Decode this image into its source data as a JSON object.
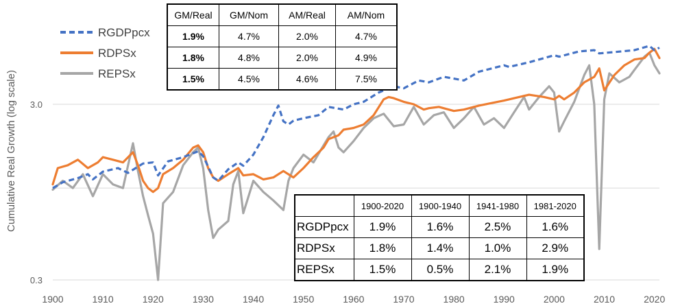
{
  "chart_data": {
    "type": "line",
    "ylabel": "Cumulative Real Growth (log scale)",
    "y_scale": "log",
    "ylim": [
      0.3,
      6.5
    ],
    "xlim": [
      1900,
      2021
    ],
    "x_ticks": [
      "1900",
      "1910",
      "1920",
      "1930",
      "1940",
      "1950",
      "1960",
      "1970",
      "1980",
      "1990",
      "2000",
      "2010",
      "2020"
    ],
    "y_ticks": [
      "3.0",
      "0.3"
    ],
    "gridlines": true,
    "legend_position": "top-left",
    "series": [
      {
        "name": "RGDPpcx",
        "color": "#4472C4",
        "dashed": true,
        "points": [
          [
            1900,
            1.0
          ],
          [
            1902,
            1.08
          ],
          [
            1905,
            1.14
          ],
          [
            1907,
            1.2
          ],
          [
            1908,
            1.12
          ],
          [
            1910,
            1.24
          ],
          [
            1913,
            1.3
          ],
          [
            1915,
            1.22
          ],
          [
            1918,
            1.38
          ],
          [
            1920,
            1.4
          ],
          [
            1921,
            1.18
          ],
          [
            1923,
            1.42
          ],
          [
            1926,
            1.5
          ],
          [
            1929,
            1.62
          ],
          [
            1930,
            1.52
          ],
          [
            1932,
            1.15
          ],
          [
            1933,
            1.1
          ],
          [
            1935,
            1.28
          ],
          [
            1937,
            1.4
          ],
          [
            1938,
            1.34
          ],
          [
            1940,
            1.55
          ],
          [
            1942,
            1.95
          ],
          [
            1944,
            2.6
          ],
          [
            1945,
            2.95
          ],
          [
            1946,
            2.4
          ],
          [
            1947,
            2.3
          ],
          [
            1948,
            2.42
          ],
          [
            1950,
            2.5
          ],
          [
            1953,
            2.6
          ],
          [
            1955,
            2.9
          ],
          [
            1958,
            2.8
          ],
          [
            1960,
            3.0
          ],
          [
            1962,
            3.1
          ],
          [
            1965,
            3.5
          ],
          [
            1968,
            3.8
          ],
          [
            1970,
            3.7
          ],
          [
            1973,
            4.1
          ],
          [
            1975,
            4.0
          ],
          [
            1978,
            4.3
          ],
          [
            1980,
            4.2
          ],
          [
            1982,
            4.1
          ],
          [
            1985,
            4.6
          ],
          [
            1990,
            5.0
          ],
          [
            1991,
            4.9
          ],
          [
            1995,
            5.2
          ],
          [
            2000,
            5.7
          ],
          [
            2001,
            5.6
          ],
          [
            2005,
            6.0
          ],
          [
            2008,
            6.1
          ],
          [
            2009,
            5.85
          ],
          [
            2012,
            5.95
          ],
          [
            2016,
            6.1
          ],
          [
            2019,
            6.45
          ],
          [
            2020,
            6.1
          ],
          [
            2021,
            6.3
          ]
        ]
      },
      {
        "name": "RDPSx",
        "color": "#ED7D31",
        "dashed": false,
        "points": [
          [
            1900,
            1.05
          ],
          [
            1901,
            1.3
          ],
          [
            1903,
            1.35
          ],
          [
            1905,
            1.45
          ],
          [
            1907,
            1.3
          ],
          [
            1909,
            1.4
          ],
          [
            1910,
            1.5
          ],
          [
            1912,
            1.45
          ],
          [
            1914,
            1.4
          ],
          [
            1916,
            1.6
          ],
          [
            1917,
            1.35
          ],
          [
            1918,
            1.1
          ],
          [
            1919,
            1.0
          ],
          [
            1920,
            0.95
          ],
          [
            1921,
            1.0
          ],
          [
            1922,
            1.2
          ],
          [
            1924,
            1.3
          ],
          [
            1926,
            1.45
          ],
          [
            1928,
            1.7
          ],
          [
            1929,
            1.75
          ],
          [
            1930,
            1.6
          ],
          [
            1931,
            1.3
          ],
          [
            1932,
            1.15
          ],
          [
            1933,
            1.1
          ],
          [
            1935,
            1.2
          ],
          [
            1937,
            1.3
          ],
          [
            1938,
            1.18
          ],
          [
            1940,
            1.2
          ],
          [
            1942,
            1.12
          ],
          [
            1944,
            1.15
          ],
          [
            1946,
            1.25
          ],
          [
            1948,
            1.15
          ],
          [
            1950,
            1.3
          ],
          [
            1952,
            1.5
          ],
          [
            1954,
            1.7
          ],
          [
            1955,
            1.9
          ],
          [
            1957,
            2.0
          ],
          [
            1958,
            2.15
          ],
          [
            1960,
            2.2
          ],
          [
            1962,
            2.3
          ],
          [
            1964,
            2.6
          ],
          [
            1966,
            3.2
          ],
          [
            1967,
            3.3
          ],
          [
            1968,
            3.25
          ],
          [
            1970,
            3.1
          ],
          [
            1972,
            3.0
          ],
          [
            1974,
            2.8
          ],
          [
            1975,
            2.85
          ],
          [
            1977,
            2.9
          ],
          [
            1980,
            2.75
          ],
          [
            1982,
            2.8
          ],
          [
            1985,
            2.95
          ],
          [
            1990,
            3.15
          ],
          [
            1993,
            3.3
          ],
          [
            1995,
            3.4
          ],
          [
            1998,
            3.3
          ],
          [
            2000,
            3.2
          ],
          [
            2001,
            3.35
          ],
          [
            2002,
            3.2
          ],
          [
            2004,
            3.5
          ],
          [
            2006,
            4.0
          ],
          [
            2008,
            4.3
          ],
          [
            2009,
            4.8
          ],
          [
            2010,
            3.6
          ],
          [
            2012,
            4.4
          ],
          [
            2014,
            5.0
          ],
          [
            2016,
            5.4
          ],
          [
            2018,
            5.5
          ],
          [
            2019,
            5.9
          ],
          [
            2020,
            6.2
          ],
          [
            2021,
            5.5
          ]
        ]
      },
      {
        "name": "REPSx",
        "color": "#A6A6A6",
        "dashed": false,
        "points": [
          [
            1900,
            0.98
          ],
          [
            1902,
            1.1
          ],
          [
            1904,
            1.0
          ],
          [
            1906,
            1.2
          ],
          [
            1908,
            0.9
          ],
          [
            1910,
            1.2
          ],
          [
            1912,
            1.05
          ],
          [
            1914,
            1.0
          ],
          [
            1916,
            1.8
          ],
          [
            1917,
            1.25
          ],
          [
            1918,
            0.9
          ],
          [
            1919,
            0.7
          ],
          [
            1920,
            0.55
          ],
          [
            1921,
            0.3
          ],
          [
            1922,
            0.82
          ],
          [
            1924,
            0.95
          ],
          [
            1926,
            1.35
          ],
          [
            1928,
            1.6
          ],
          [
            1929,
            1.7
          ],
          [
            1930,
            1.3
          ],
          [
            1931,
            0.75
          ],
          [
            1932,
            0.52
          ],
          [
            1933,
            0.58
          ],
          [
            1935,
            0.65
          ],
          [
            1936,
            1.05
          ],
          [
            1937,
            1.25
          ],
          [
            1938,
            0.72
          ],
          [
            1940,
            1.1
          ],
          [
            1942,
            0.95
          ],
          [
            1944,
            0.85
          ],
          [
            1946,
            0.75
          ],
          [
            1947,
            1.1
          ],
          [
            1948,
            1.3
          ],
          [
            1950,
            1.55
          ],
          [
            1952,
            1.4
          ],
          [
            1954,
            1.75
          ],
          [
            1955,
            1.95
          ],
          [
            1956,
            2.1
          ],
          [
            1957,
            1.7
          ],
          [
            1958,
            1.6
          ],
          [
            1960,
            1.85
          ],
          [
            1962,
            2.2
          ],
          [
            1964,
            2.5
          ],
          [
            1966,
            2.65
          ],
          [
            1968,
            2.25
          ],
          [
            1970,
            2.3
          ],
          [
            1972,
            2.9
          ],
          [
            1974,
            2.3
          ],
          [
            1976,
            2.6
          ],
          [
            1978,
            2.7
          ],
          [
            1980,
            2.2
          ],
          [
            1982,
            2.5
          ],
          [
            1984,
            2.9
          ],
          [
            1986,
            2.3
          ],
          [
            1988,
            2.5
          ],
          [
            1990,
            2.2
          ],
          [
            1992,
            2.7
          ],
          [
            1994,
            3.3
          ],
          [
            1995,
            2.8
          ],
          [
            1997,
            3.3
          ],
          [
            1999,
            3.8
          ],
          [
            2000,
            3.5
          ],
          [
            2001,
            2.1
          ],
          [
            2002,
            2.4
          ],
          [
            2004,
            3.1
          ],
          [
            2006,
            4.4
          ],
          [
            2007,
            5.0
          ],
          [
            2008,
            3.0
          ],
          [
            2009,
            0.45
          ],
          [
            2010,
            3.2
          ],
          [
            2011,
            4.5
          ],
          [
            2013,
            4.0
          ],
          [
            2015,
            4.3
          ],
          [
            2016,
            4.7
          ],
          [
            2018,
            5.6
          ],
          [
            2019,
            5.9
          ],
          [
            2020,
            5.0
          ],
          [
            2021,
            4.5
          ]
        ]
      }
    ]
  },
  "table_top": {
    "headers": [
      "GM/Real",
      "GM/Nom",
      "AM/Real",
      "AM/Nom"
    ],
    "rows": [
      [
        "1.9%",
        "4.7%",
        "2.0%",
        "4.7%"
      ],
      [
        "1.8%",
        "4.8%",
        "2.0%",
        "4.9%"
      ],
      [
        "1.5%",
        "4.5%",
        "4.6%",
        "7.5%"
      ]
    ]
  },
  "table_bottom": {
    "headers": [
      "1900-2020",
      "1900-1940",
      "1941-1980",
      "1981-2020"
    ],
    "rows": [
      {
        "label": "RGDPpcx",
        "values": [
          "1.9%",
          "1.6%",
          "2.5%",
          "1.6%"
        ]
      },
      {
        "label": "RDPSx",
        "values": [
          "1.8%",
          "1.4%",
          "1.0%",
          "2.9%"
        ]
      },
      {
        "label": "REPSx",
        "values": [
          "1.5%",
          "0.5%",
          "2.1%",
          "1.9%"
        ]
      }
    ]
  }
}
